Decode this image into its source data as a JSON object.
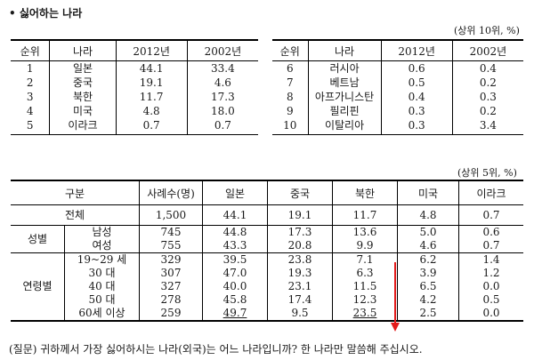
{
  "heading": "• 싫어하는 나라",
  "top": {
    "unit": "(상위 10위, %)",
    "headers": [
      "순위",
      "나라",
      "2012년",
      "2002년"
    ],
    "left_rows": [
      [
        "1",
        "일본",
        "44.1",
        "33.4"
      ],
      [
        "2",
        "중국",
        "19.1",
        "4.6"
      ],
      [
        "3",
        "북한",
        "11.7",
        "17.3"
      ],
      [
        "4",
        "미국",
        "4.8",
        "18.0"
      ],
      [
        "5",
        "이라크",
        "0.7",
        "0.7"
      ]
    ],
    "right_rows": [
      [
        "6",
        "러시아",
        "0.6",
        "0.4"
      ],
      [
        "7",
        "베트남",
        "0.5",
        "0.2"
      ],
      [
        "8",
        "아프가니스탄",
        "0.4",
        "0.3"
      ],
      [
        "9",
        "필리핀",
        "0.3",
        "0.2"
      ],
      [
        "10",
        "이탈리아",
        "0.3",
        "3.4"
      ]
    ]
  },
  "bottom": {
    "unit": "(상위 5위, %)",
    "headers": [
      "구분",
      "사례수(명)",
      "일본",
      "중국",
      "북한",
      "미국",
      "이라크"
    ],
    "total": [
      "전체",
      "1,500",
      "44.1",
      "19.1",
      "11.7",
      "4.8",
      "0.7"
    ],
    "gender_label": "성별",
    "gender_rows": [
      [
        "남성",
        "745",
        "44.8",
        "17.3",
        "13.6",
        "5.0",
        "0.6"
      ],
      [
        "여성",
        "755",
        "43.3",
        "20.8",
        "9.9",
        "4.6",
        "0.7"
      ]
    ],
    "age_label": "연령별",
    "age_rows": [
      [
        "19~29 세",
        "329",
        "39.5",
        "23.8",
        "7.1",
        "6.2",
        "1.4"
      ],
      [
        "30 대",
        "307",
        "47.0",
        "19.3",
        "6.3",
        "3.9",
        "1.2"
      ],
      [
        "40 대",
        "327",
        "40.0",
        "23.1",
        "11.5",
        "6.5",
        "0.0"
      ],
      [
        "50 대",
        "278",
        "45.8",
        "17.4",
        "12.3",
        "4.2",
        "0.5"
      ],
      [
        "60세 이상",
        "259",
        "49.7",
        "9.5",
        "23.5",
        "2.5",
        "0.0"
      ]
    ]
  },
  "note": "(질문) 귀하께서 가장 싫어하시는 나라(외국)는 어느 나라입니까? 한 나라만 말씀해 주십시오.",
  "colors": {
    "arrow": "#e31b1b"
  }
}
